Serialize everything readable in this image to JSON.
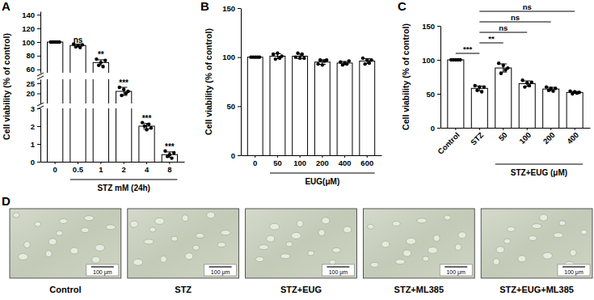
{
  "chart_data": [
    {
      "panel": "A",
      "type": "bar",
      "categories": [
        "0",
        "0.5",
        "1",
        "2",
        "4",
        "8"
      ],
      "values": [
        100,
        95,
        70,
        21,
        2,
        0.4
      ],
      "errors": [
        0.5,
        2,
        4,
        2,
        0.15,
        0.15
      ],
      "points": [
        [
          100,
          100,
          100,
          100,
          100
        ],
        [
          97,
          93,
          95,
          92,
          96
        ],
        [
          75,
          66,
          70,
          64,
          73
        ],
        [
          23,
          19,
          22,
          20,
          21
        ],
        [
          2.2,
          2.0,
          1.8,
          2.1,
          1.9
        ],
        [
          0.6,
          0.3,
          0.4,
          0.2,
          0.5
        ]
      ],
      "significance": [
        null,
        "ns",
        "**",
        "***",
        "***",
        "***"
      ],
      "xlabel": "STZ mM (24h)",
      "xlabel_span": [
        1,
        5
      ],
      "ylabel": "Cell viability (% of control)",
      "color": "#ffffff",
      "y_segments": [
        {
          "ylim": [
            0,
            3
          ],
          "yticks": [
            0,
            1,
            2,
            3
          ]
        },
        {
          "ylim": [
            15,
            27
          ],
          "yticks": [
            20,
            25
          ]
        },
        {
          "ylim": [
            55,
            145
          ],
          "yticks": [
            60,
            80,
            100,
            120,
            140
          ]
        }
      ]
    },
    {
      "panel": "B",
      "type": "bar",
      "categories": [
        "0",
        "50",
        "100",
        "200",
        "400",
        "600"
      ],
      "values": [
        100,
        101,
        101,
        95,
        94,
        96
      ],
      "errors": [
        0,
        2.5,
        2.3,
        2.3,
        1.6,
        2.4
      ],
      "points": [
        [
          100,
          100,
          100,
          100,
          100
        ],
        [
          103,
          98,
          104,
          99,
          101
        ],
        [
          100,
          104,
          99,
          103,
          99
        ],
        [
          93,
          97,
          92,
          96,
          97
        ],
        [
          95,
          92,
          94,
          93,
          96
        ],
        [
          99,
          93,
          97,
          94,
          97
        ]
      ],
      "xlabel": "EUG(μM)",
      "xlabel_span": [
        1,
        5
      ],
      "ylabel": "Cell viability (% of control)",
      "color": "#ffffff",
      "ylim": [
        0,
        150
      ],
      "yticks": [
        0,
        50,
        100,
        150
      ]
    },
    {
      "panel": "C",
      "type": "bar",
      "categories": [
        "Control",
        "STZ",
        "50",
        "100",
        "200",
        "400"
      ],
      "values": [
        100,
        58,
        88,
        65,
        57,
        52
      ],
      "errors": [
        0,
        3.5,
        6,
        4,
        2.5,
        1.5
      ],
      "points": [
        [
          100,
          100,
          100,
          100,
          100
        ],
        [
          62,
          55,
          60,
          53,
          60
        ],
        [
          95,
          80,
          92,
          85,
          88
        ],
        [
          70,
          60,
          66,
          62,
          67
        ],
        [
          60,
          55,
          58,
          54,
          58
        ],
        [
          54,
          50,
          53,
          51,
          52
        ]
      ],
      "comparisons": [
        {
          "from": 1,
          "to": 5,
          "label": "ns"
        },
        {
          "from": 1,
          "to": 4,
          "label": "ns"
        },
        {
          "from": 1,
          "to": 3,
          "label": "ns"
        },
        {
          "from": 1,
          "to": 2,
          "label": "**"
        },
        {
          "from": 0,
          "to": 1,
          "label": "***"
        }
      ],
      "xlabel": "STZ+EUG (μM)",
      "xlabel_span": [
        2,
        5
      ],
      "ylabel": "Cell viability (% of control)",
      "color": "#ffffff",
      "ylim": [
        0,
        150
      ],
      "yticks": [
        0,
        50,
        100,
        150
      ]
    }
  ],
  "images": {
    "panel": "D",
    "items": [
      {
        "label": "Control",
        "scale_bar": "100 μm"
      },
      {
        "label": "STZ",
        "scale_bar": "100 μm"
      },
      {
        "label": "STZ+EUG",
        "scale_bar": "100 μm"
      },
      {
        "label": "STZ+ML385",
        "scale_bar": "100 μm"
      },
      {
        "label": "STZ+EUG+ML385",
        "scale_bar": "100 μm"
      }
    ]
  }
}
